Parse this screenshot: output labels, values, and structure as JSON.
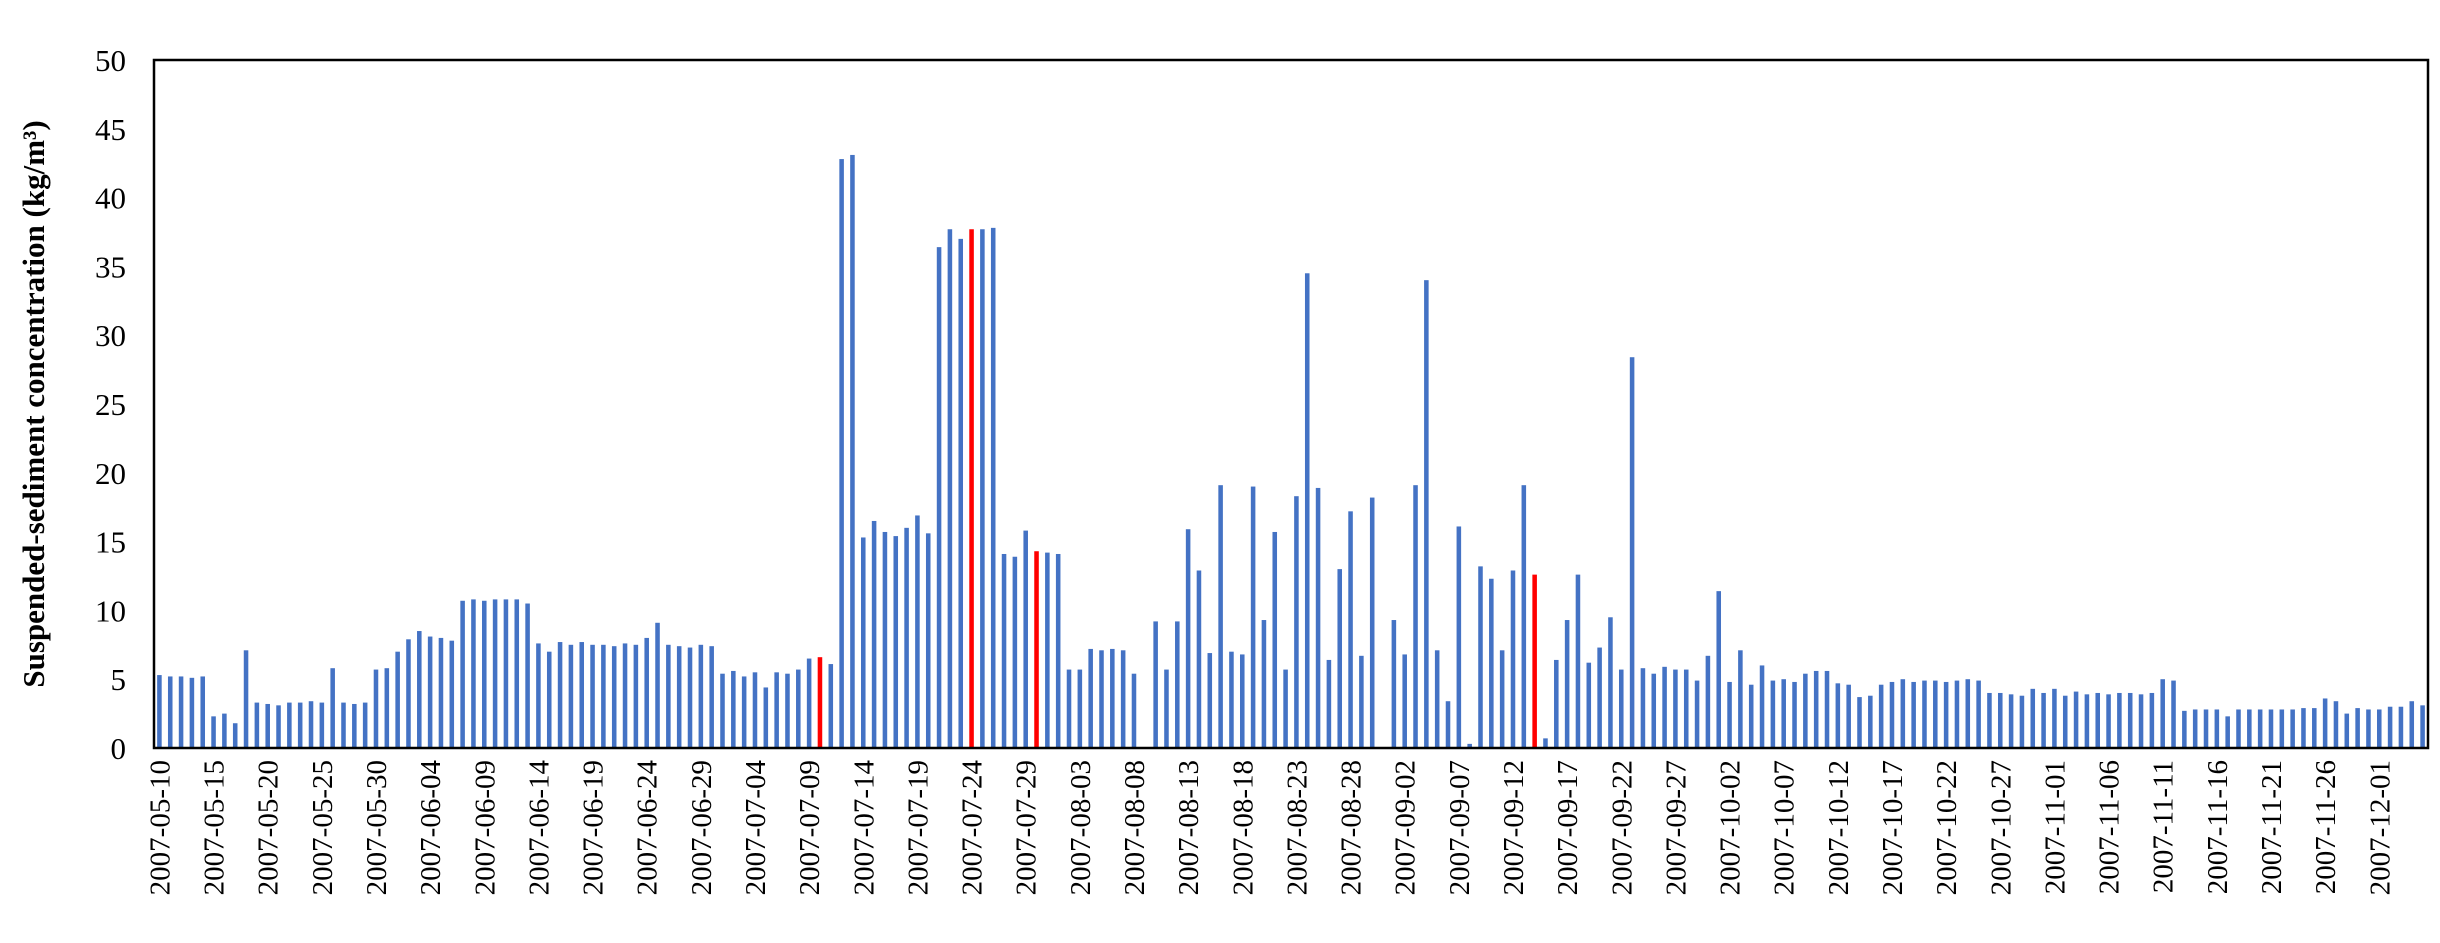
{
  "chart_data": {
    "type": "bar",
    "title": "",
    "xlabel": "",
    "ylabel": "Suspended-sediment concentration (kg/m³)",
    "ylim": [
      0,
      50
    ],
    "yticks": [
      0,
      5,
      10,
      15,
      20,
      25,
      30,
      35,
      40,
      45,
      50
    ],
    "grid": false,
    "legend": "none",
    "start_date": "2007-05-10",
    "end_date": "2007-12-05",
    "xtick_labels": [
      "2007-05-10",
      "2007-05-15",
      "2007-05-20",
      "2007-05-25",
      "2007-05-30",
      "2007-06-04",
      "2007-06-09",
      "2007-06-14",
      "2007-06-19",
      "2007-06-24",
      "2007-06-29",
      "2007-07-04",
      "2007-07-09",
      "2007-07-14",
      "2007-07-19",
      "2007-07-24",
      "2007-07-29",
      "2007-08-03",
      "2007-08-08",
      "2007-08-13",
      "2007-08-18",
      "2007-08-23",
      "2007-08-28",
      "2007-09-02",
      "2007-09-07",
      "2007-09-12",
      "2007-09-17",
      "2007-09-22",
      "2007-09-27",
      "2007-10-02",
      "2007-10-07",
      "2007-10-12",
      "2007-10-17",
      "2007-10-22",
      "2007-10-27",
      "2007-11-01",
      "2007-11-06",
      "2007-11-11",
      "2007-11-16",
      "2007-11-21",
      "2007-11-26",
      "2007-12-01"
    ],
    "values": [
      5.3,
      5.2,
      5.2,
      5.1,
      5.2,
      2.3,
      2.5,
      1.8,
      7.1,
      3.3,
      3.2,
      3.1,
      3.3,
      3.3,
      3.4,
      3.3,
      5.8,
      3.3,
      3.2,
      3.3,
      5.7,
      5.8,
      7.0,
      7.9,
      8.5,
      8.1,
      8.0,
      7.8,
      10.7,
      10.8,
      10.7,
      10.8,
      10.8,
      10.8,
      10.5,
      7.6,
      7.0,
      7.7,
      7.5,
      7.7,
      7.5,
      7.5,
      7.4,
      7.6,
      7.5,
      8.0,
      9.1,
      7.5,
      7.4,
      7.3,
      7.5,
      7.4,
      5.4,
      5.6,
      5.2,
      5.5,
      4.4,
      5.5,
      5.4,
      5.7,
      6.5,
      6.6,
      6.1,
      42.8,
      43.1,
      15.3,
      16.5,
      15.7,
      15.4,
      16.0,
      16.9,
      15.6,
      36.4,
      37.7,
      37.0,
      37.7,
      37.7,
      37.8,
      14.1,
      13.9,
      15.8,
      14.3,
      14.2,
      14.1,
      5.7,
      5.7,
      7.2,
      7.1,
      7.2,
      7.1,
      5.4,
      0,
      9.2,
      5.7,
      9.2,
      15.9,
      12.9,
      6.9,
      19.1,
      7.0,
      6.8,
      19.0,
      9.3,
      15.7,
      5.7,
      18.3,
      34.5,
      18.9,
      6.4,
      13.0,
      17.2,
      6.7,
      18.2,
      0,
      9.3,
      6.8,
      19.1,
      34.0,
      7.1,
      3.4,
      16.1,
      0.3,
      13.2,
      12.3,
      7.1,
      12.9,
      19.1,
      12.6,
      0.7,
      6.4,
      9.3,
      12.6,
      6.2,
      7.3,
      9.5,
      5.7,
      28.4,
      5.8,
      5.4,
      5.9,
      5.7,
      5.7,
      4.9,
      6.7,
      11.4,
      4.8,
      7.1,
      4.6,
      6.0,
      4.9,
      5.0,
      4.8,
      5.4,
      5.6,
      5.6,
      4.7,
      4.6,
      3.7,
      3.8,
      4.6,
      4.8,
      5.0,
      4.8,
      4.9,
      4.9,
      4.8,
      4.9,
      5.0,
      4.9,
      4.0,
      4.0,
      3.9,
      3.8,
      4.3,
      4.0,
      4.3,
      3.8,
      4.1,
      3.9,
      4.0,
      3.9,
      4.0,
      4.0,
      3.9,
      4.0,
      5.0,
      4.9,
      2.7,
      2.8,
      2.8,
      2.8,
      2.3,
      2.8,
      2.8,
      2.8,
      2.8,
      2.8,
      2.8,
      2.9,
      2.9,
      3.6,
      3.4,
      2.5,
      2.9,
      2.8,
      2.8,
      3.0,
      3.0,
      3.4,
      3.1
    ],
    "highlighted_dates": [
      "2007-07-10",
      "2007-07-24",
      "2007-07-30",
      "2007-09-14"
    ],
    "colors": {
      "bar": "#4472C4",
      "highlight": "#FF0000",
      "axis": "#000000"
    }
  }
}
